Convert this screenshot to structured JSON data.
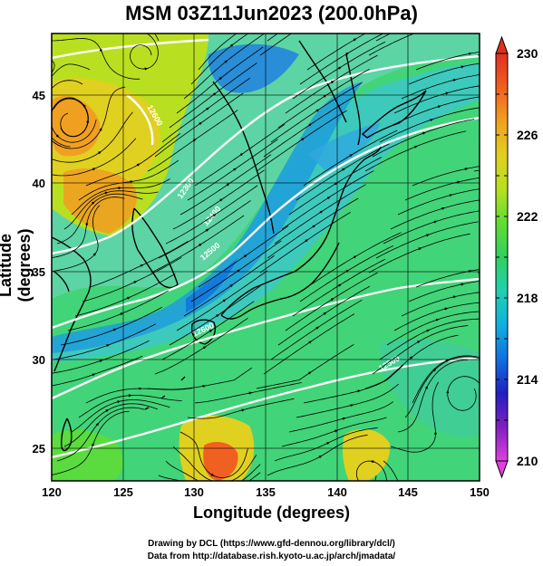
{
  "title": "MSM 03Z11Jun2023 (200.0hPa)",
  "axes": {
    "xlabel": "Longitude (degrees)",
    "ylabel": "Latitude  (degrees)",
    "xticks": [
      "120",
      "125",
      "130",
      "135",
      "140",
      "145",
      "150"
    ],
    "yticks": [
      "25",
      "30",
      "35",
      "40",
      "45"
    ],
    "xrange": [
      120,
      150
    ],
    "yrange": [
      22.4,
      47.6
    ]
  },
  "colorbar": {
    "ticks": [
      "230",
      "226",
      "222",
      "218",
      "214",
      "210"
    ],
    "range": [
      210,
      230
    ],
    "colors": [
      "#e040e0",
      "#8020c0",
      "#2020c0",
      "#1070e0",
      "#10b0e0",
      "#20d0b0",
      "#30d060",
      "#60dc30",
      "#b8e020",
      "#e0d020",
      "#f0a020",
      "#f06020",
      "#e03020"
    ]
  },
  "contour_labels": [
    "12600",
    "12300",
    "12400",
    "12500",
    "12600",
    "12500"
  ],
  "credits": {
    "line1": "Drawing by DCL (https://www.gfd-dennou.org/library/dcl/)",
    "line2": "Data from http://database.rish.kyoto-u.ac.jp/arch/jmadata/"
  }
}
